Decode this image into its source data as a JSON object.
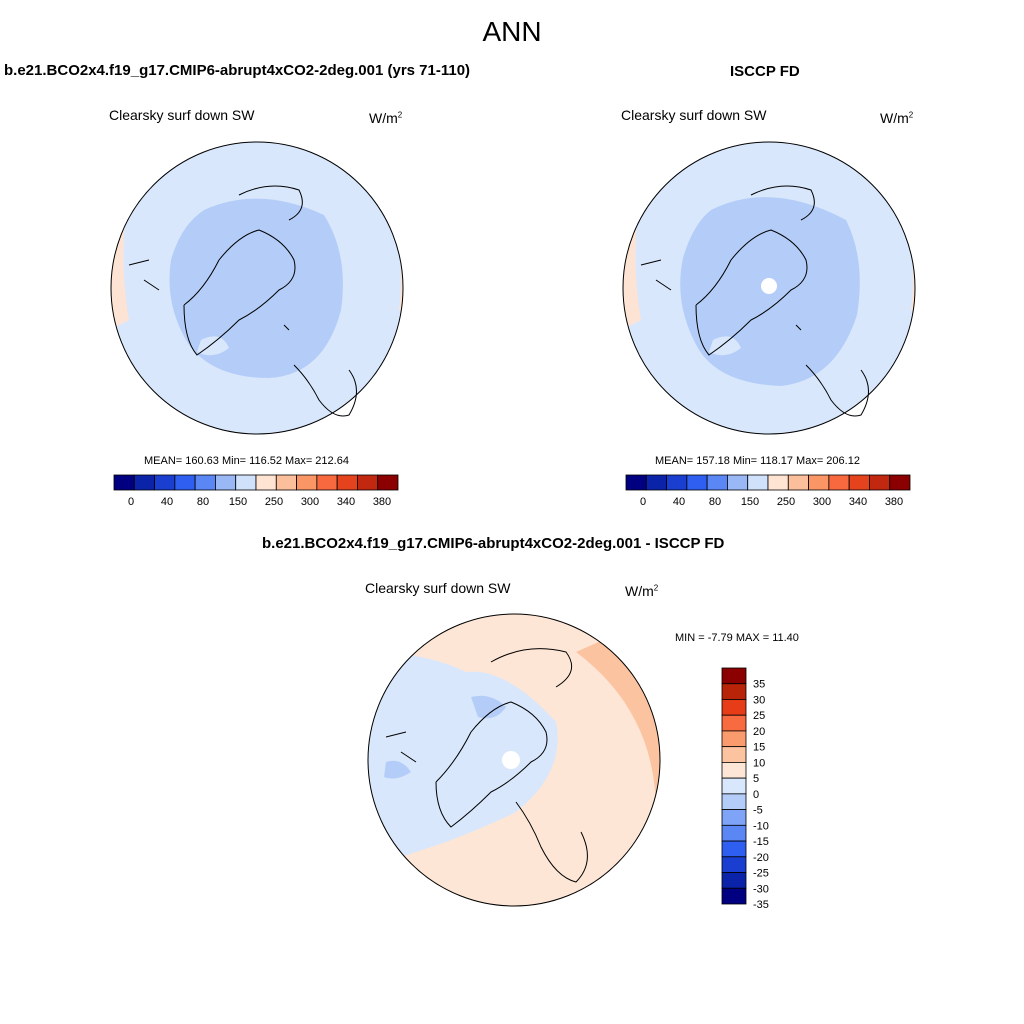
{
  "title": "ANN",
  "panels": [
    {
      "case": "b.e21.BCO2x4.f19_g17.CMIP6-abrupt4xCO2-2deg.001 (yrs 71-110)",
      "variable": "Clearsky surf down SW",
      "units": "W/m",
      "units_sup": "2",
      "stats": "MEAN= 160.63  Min= 116.52  Max= 212.64"
    },
    {
      "case": "ISCCP FD",
      "variable": "Clearsky surf down SW",
      "units": "W/m",
      "units_sup": "2",
      "stats": "MEAN= 157.18  Min= 118.17  Max= 206.12"
    },
    {
      "case": "b.e21.BCO2x4.f19_g17.CMIP6-abrupt4xCO2-2deg.001 - ISCCP FD",
      "variable": "Clearsky surf down SW",
      "units": "W/m",
      "units_sup": "2",
      "stats": "MIN =  -7.79 MAX =  11.40"
    }
  ],
  "colorbar_main": {
    "colors": [
      "#000080",
      "#0a23a8",
      "#1a3fd0",
      "#2f5ff0",
      "#5b87f5",
      "#9ab8f6",
      "#cfe1fb",
      "#ffe4d3",
      "#fcbf9b",
      "#fa9566",
      "#f8693f",
      "#e4431d",
      "#c2280f",
      "#8b0000"
    ],
    "tick_labels": [
      "0",
      "40",
      "80",
      "150",
      "250",
      "300",
      "340",
      "380"
    ]
  },
  "colorbar_diff": {
    "colors": [
      "#000080",
      "#0a23a8",
      "#1a3fd0",
      "#2f5ff0",
      "#5b87f5",
      "#7fa3f6",
      "#b4cdf8",
      "#d8e7fc",
      "#fde6d6",
      "#fcc3a1",
      "#fa9b6d",
      "#f86a3f",
      "#e63d18",
      "#b82408",
      "#8b0000"
    ],
    "tick_labels": [
      "35",
      "30",
      "25",
      "20",
      "15",
      "10",
      "5",
      "0",
      "-5",
      "-10",
      "-15",
      "-20",
      "-25",
      "-30",
      "-35"
    ]
  }
}
